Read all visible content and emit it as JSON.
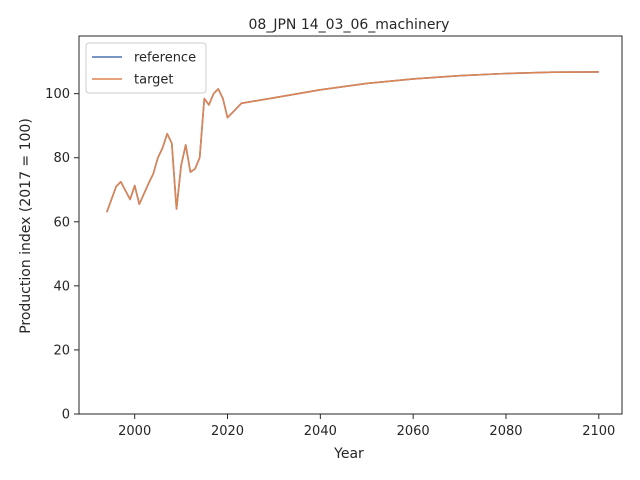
{
  "chart_data": {
    "type": "line",
    "title": "08_JPN 14_03_06_machinery",
    "xlabel": "Year",
    "ylabel": "Production index (2017 = 100)",
    "xlim": [
      1988,
      2105
    ],
    "ylim": [
      0,
      118
    ],
    "xticks": [
      2000,
      2020,
      2040,
      2060,
      2080,
      2100
    ],
    "yticks": [
      0,
      20,
      40,
      60,
      80,
      100
    ],
    "grid": false,
    "legend_position": "top-left",
    "series": [
      {
        "name": "reference",
        "color": "#4c72b0",
        "x": [
          1994,
          1996,
          1997,
          1999,
          2000,
          2001,
          2003,
          2004,
          2005,
          2006,
          2007,
          2008,
          2009,
          2010,
          2011,
          2012,
          2013,
          2014,
          2015,
          2016,
          2017,
          2018,
          2019,
          2020,
          2023,
          2030,
          2040,
          2050,
          2060,
          2070,
          2080,
          2090,
          2100
        ],
        "y": [
          63,
          71,
          72.5,
          67,
          71.3,
          65.5,
          72,
          75,
          80,
          83,
          87.5,
          84.5,
          64,
          77.5,
          84,
          75.5,
          76.5,
          80,
          98.5,
          96.5,
          100,
          101.5,
          98.5,
          92.5,
          97,
          98.7,
          101.2,
          103.2,
          104.6,
          105.6,
          106.3,
          106.7,
          106.8
        ]
      },
      {
        "name": "target",
        "color": "#dd8452",
        "x": [
          1994,
          1996,
          1997,
          1999,
          2000,
          2001,
          2003,
          2004,
          2005,
          2006,
          2007,
          2008,
          2009,
          2010,
          2011,
          2012,
          2013,
          2014,
          2015,
          2016,
          2017,
          2018,
          2019,
          2020,
          2023,
          2030,
          2040,
          2050,
          2060,
          2070,
          2080,
          2090,
          2100
        ],
        "y": [
          63,
          71,
          72.5,
          67,
          71.3,
          65.5,
          72,
          75,
          80,
          83,
          87.5,
          84.5,
          64,
          77.5,
          84,
          75.5,
          76.5,
          80,
          98.5,
          96.5,
          100,
          101.5,
          98.5,
          92.5,
          97,
          98.7,
          101.2,
          103.2,
          104.6,
          105.6,
          106.3,
          106.7,
          106.8
        ]
      }
    ]
  }
}
